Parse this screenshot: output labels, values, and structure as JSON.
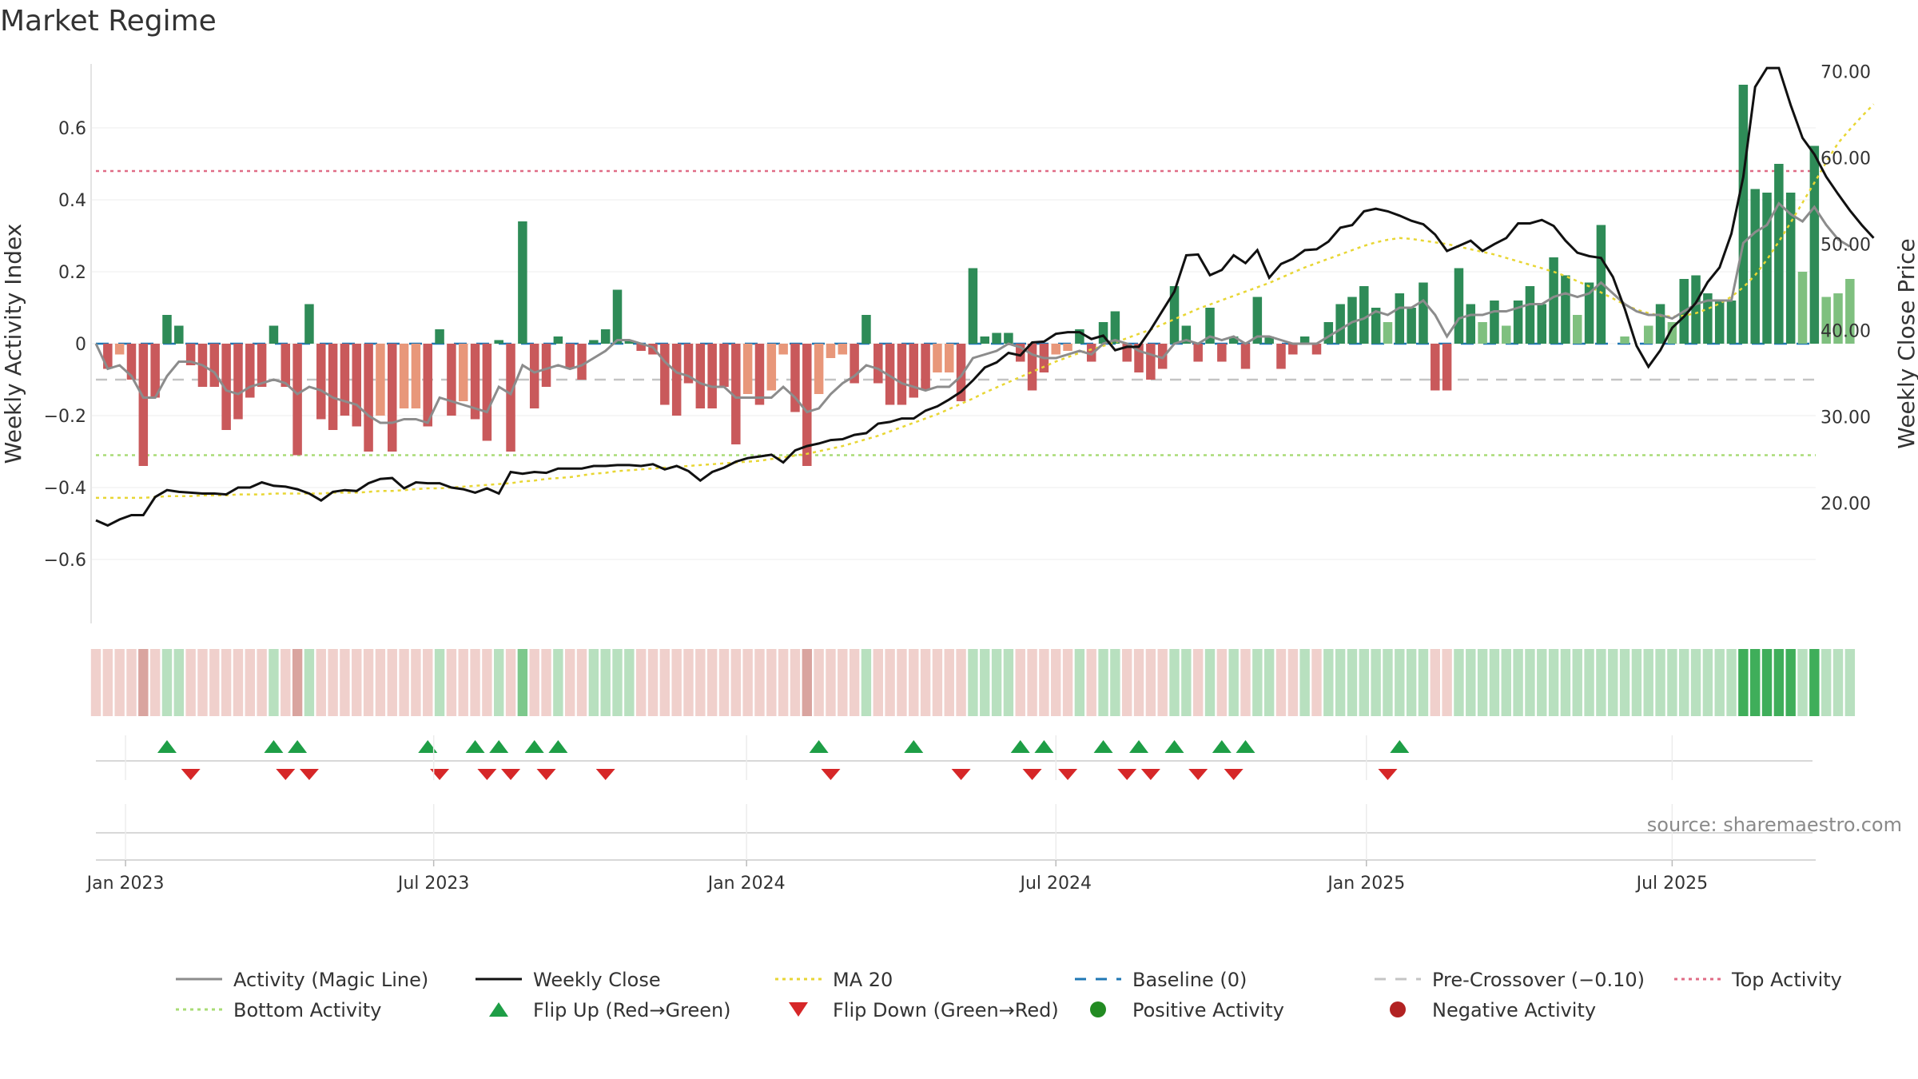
{
  "chart_data": {
    "type": "bar",
    "title": "Market Regime",
    "ylabel": "Weekly Activity Index",
    "y2label": "Weekly Close Price",
    "ylim": [
      -0.78,
      0.78
    ],
    "y2lim": [
      13.0,
      77.5
    ],
    "yticks": [
      "0.6",
      "0.4",
      "0.2",
      "0",
      "−0.2",
      "−0.4",
      "−0.6"
    ],
    "yticks_values": [
      0.6,
      0.4,
      0.2,
      0,
      -0.2,
      -0.4,
      -0.6
    ],
    "y2ticks": [
      "70.00",
      "60.00",
      "50.00",
      "40.00",
      "30.00",
      "20.00"
    ],
    "y2ticks_values": [
      70,
      60,
      50,
      40,
      30,
      20
    ],
    "xticks": [
      "Jan 2023",
      "Jul 2023",
      "Jan 2024",
      "Jul 2024",
      "Jan 2025",
      "Jul 2025"
    ],
    "xtick_weeks": [
      2.5,
      28.5,
      54.9,
      81,
      107.2,
      133
    ],
    "grid": true,
    "legend_position": "bottom",
    "reference_lines": {
      "baseline": 0,
      "pre_crossover": -0.1,
      "top_activity": 0.48,
      "bottom_activity": -0.31
    },
    "activity": [
      0.0,
      -0.07,
      -0.03,
      -0.1,
      -0.34,
      -0.15,
      0.08,
      0.05,
      -0.06,
      -0.12,
      -0.12,
      -0.24,
      -0.21,
      -0.15,
      -0.12,
      0.05,
      -0.12,
      -0.31,
      0.11,
      -0.21,
      -0.24,
      -0.2,
      -0.23,
      -0.3,
      -0.2,
      -0.3,
      -0.18,
      -0.18,
      -0.23,
      0.04,
      -0.2,
      -0.16,
      -0.21,
      -0.27,
      0.01,
      -0.3,
      0.34,
      -0.18,
      -0.12,
      0.02,
      -0.07,
      -0.1,
      0.01,
      0.04,
      0.15,
      0.01,
      -0.02,
      -0.03,
      -0.17,
      -0.2,
      -0.11,
      -0.18,
      -0.18,
      -0.12,
      -0.28,
      -0.14,
      -0.17,
      -0.13,
      -0.03,
      -0.19,
      -0.34,
      -0.14,
      -0.04,
      -0.03,
      -0.11,
      0.08,
      -0.11,
      -0.17,
      -0.17,
      -0.15,
      -0.13,
      -0.08,
      -0.08,
      -0.16,
      0.21,
      0.02,
      0.03,
      0.03,
      -0.05,
      -0.13,
      -0.08,
      -0.03,
      -0.02,
      0.04,
      -0.05,
      0.06,
      0.09,
      -0.05,
      -0.08,
      -0.1,
      -0.07,
      0.16,
      0.05,
      -0.05,
      0.1,
      -0.05,
      0.02,
      -0.07,
      0.13,
      0.02,
      -0.07,
      -0.03,
      0.02,
      -0.03,
      0.06,
      0.11,
      0.13,
      0.16,
      0.1,
      0.06,
      0.14,
      0.1,
      0.17,
      -0.13,
      -0.13,
      0.21,
      0.11,
      0.06,
      0.12,
      0.05,
      0.12,
      0.16,
      0.11,
      0.24,
      0.19,
      0.08,
      0.17,
      0.33,
      0.0,
      0.02,
      0.0,
      0.05,
      0.11,
      0.06,
      0.18,
      0.19,
      0.14,
      0.12,
      0.12,
      0.72,
      0.43,
      0.42,
      0.5,
      0.42,
      0.2,
      0.55,
      0.13,
      0.14,
      0.18
    ],
    "magic_line": [
      0.0,
      -0.07,
      -0.06,
      -0.09,
      -0.15,
      -0.15,
      -0.09,
      -0.05,
      -0.05,
      -0.06,
      -0.08,
      -0.13,
      -0.14,
      -0.12,
      -0.11,
      -0.1,
      -0.11,
      -0.14,
      -0.12,
      -0.13,
      -0.15,
      -0.16,
      -0.17,
      -0.2,
      -0.22,
      -0.22,
      -0.21,
      -0.21,
      -0.22,
      -0.15,
      -0.16,
      -0.17,
      -0.18,
      -0.19,
      -0.12,
      -0.14,
      -0.06,
      -0.08,
      -0.07,
      -0.06,
      -0.07,
      -0.06,
      -0.04,
      -0.02,
      0.01,
      0.01,
      0.0,
      -0.01,
      -0.05,
      -0.08,
      -0.09,
      -0.11,
      -0.12,
      -0.12,
      -0.15,
      -0.15,
      -0.15,
      -0.15,
      -0.12,
      -0.15,
      -0.19,
      -0.18,
      -0.14,
      -0.11,
      -0.09,
      -0.06,
      -0.07,
      -0.09,
      -0.11,
      -0.12,
      -0.13,
      -0.12,
      -0.12,
      -0.09,
      -0.04,
      -0.03,
      -0.02,
      0.0,
      -0.01,
      -0.03,
      -0.04,
      -0.04,
      -0.03,
      -0.02,
      -0.03,
      0.0,
      0.01,
      0.0,
      -0.02,
      -0.03,
      -0.04,
      0.0,
      0.01,
      0.0,
      0.02,
      0.01,
      0.02,
      0.0,
      0.02,
      0.02,
      0.01,
      0.0,
      0.0,
      0.0,
      0.02,
      0.04,
      0.06,
      0.07,
      0.09,
      0.08,
      0.1,
      0.1,
      0.12,
      0.08,
      0.02,
      0.07,
      0.08,
      0.08,
      0.09,
      0.09,
      0.1,
      0.11,
      0.11,
      0.13,
      0.14,
      0.13,
      0.14,
      0.17,
      0.14,
      0.11,
      0.09,
      0.08,
      0.08,
      0.07,
      0.09,
      0.11,
      0.12,
      0.12,
      0.12,
      0.28,
      0.31,
      0.33,
      0.39,
      0.36,
      0.34,
      0.38,
      0.33,
      0.29,
      0.27
    ],
    "weekly_close": [
      18.0,
      17.4,
      18.1,
      18.6,
      18.6,
      20.7,
      21.5,
      21.3,
      21.2,
      21.1,
      21.1,
      21.0,
      21.8,
      21.8,
      22.4,
      22.0,
      21.9,
      21.6,
      21.1,
      20.3,
      21.3,
      21.5,
      21.4,
      22.3,
      22.8,
      22.9,
      21.7,
      22.4,
      22.3,
      22.3,
      21.8,
      21.6,
      21.2,
      21.7,
      21.1,
      23.6,
      23.4,
      23.6,
      23.5,
      24.0,
      24.0,
      24.0,
      24.3,
      24.3,
      24.4,
      24.4,
      24.3,
      24.5,
      23.9,
      24.3,
      23.7,
      22.6,
      23.6,
      24.1,
      24.8,
      25.2,
      25.4,
      25.6,
      24.7,
      26.1,
      26.6,
      26.9,
      27.3,
      27.4,
      27.9,
      28.1,
      29.2,
      29.4,
      29.8,
      29.8,
      30.7,
      31.2,
      32.0,
      32.9,
      34.2,
      35.7,
      36.3,
      37.4,
      37.1,
      38.6,
      38.7,
      39.6,
      39.8,
      39.8,
      39.0,
      39.4,
      37.7,
      38.1,
      38.1,
      40.1,
      42.3,
      44.5,
      48.7,
      48.8,
      46.4,
      47.0,
      48.7,
      47.8,
      49.3,
      46.1,
      47.7,
      48.3,
      49.3,
      49.4,
      50.3,
      51.9,
      52.2,
      53.8,
      54.1,
      53.8,
      53.3,
      52.7,
      52.3,
      51.1,
      49.2,
      49.8,
      50.4,
      49.2,
      50.0,
      50.7,
      52.4,
      52.4,
      52.8,
      52.1,
      50.4,
      49.0,
      48.6,
      48.4,
      46.2,
      42.5,
      38.2,
      35.8,
      37.7,
      40.3,
      41.6,
      43.2,
      45.6,
      47.3,
      51.2,
      57.8,
      68.2,
      70.4,
      70.4,
      66.1,
      62.3,
      60.4,
      57.8,
      55.8,
      53.9,
      52.2,
      50.7
    ],
    "ma20": [
      20.6,
      20.6,
      20.6,
      20.6,
      20.6,
      20.7,
      20.8,
      20.8,
      20.8,
      20.9,
      20.9,
      20.9,
      21.0,
      21.0,
      21.0,
      21.1,
      21.1,
      21.1,
      21.1,
      21.1,
      21.2,
      21.2,
      21.2,
      21.3,
      21.4,
      21.4,
      21.5,
      21.6,
      21.7,
      21.7,
      21.8,
      21.9,
      22.0,
      22.1,
      22.2,
      22.3,
      22.5,
      22.6,
      22.8,
      22.9,
      23.0,
      23.2,
      23.4,
      23.5,
      23.7,
      23.8,
      23.9,
      24.0,
      24.1,
      24.2,
      24.3,
      24.4,
      24.5,
      24.6,
      24.7,
      24.8,
      24.9,
      25.1,
      25.3,
      25.5,
      25.7,
      26.0,
      26.3,
      26.6,
      27.0,
      27.4,
      27.8,
      28.3,
      28.8,
      29.3,
      29.8,
      30.3,
      30.9,
      31.5,
      32.1,
      32.8,
      33.4,
      34.0,
      34.6,
      35.2,
      35.8,
      36.4,
      36.9,
      37.4,
      37.8,
      38.2,
      38.6,
      39.1,
      39.6,
      40.1,
      40.7,
      41.3,
      41.9,
      42.5,
      43.0,
      43.5,
      44.0,
      44.5,
      45.0,
      45.5,
      46.1,
      46.7,
      47.3,
      47.8,
      48.3,
      48.8,
      49.3,
      49.8,
      50.2,
      50.5,
      50.7,
      50.6,
      50.4,
      50.2,
      50.0,
      49.7,
      49.4,
      49.1,
      48.8,
      48.4,
      48.0,
      47.6,
      47.2,
      46.8,
      46.3,
      45.7,
      45.1,
      44.4,
      43.7,
      43.0,
      42.4,
      42.0,
      41.7,
      41.6,
      41.7,
      42.0,
      42.5,
      43.1,
      43.9,
      45.0,
      46.4,
      48.2,
      50.3,
      52.5,
      54.8,
      57.1,
      59.5,
      61.7,
      63.3,
      64.8,
      66.2
    ],
    "regime_strip": [
      "rl",
      "rl",
      "rl",
      "rl",
      "rm",
      "rl",
      "gl",
      "gl",
      "rl",
      "rl",
      "rl",
      "rl",
      "rl",
      "rl",
      "rl",
      "gl",
      "rl",
      "rm",
      "gl",
      "rl",
      "rl",
      "rl",
      "rl",
      "rl",
      "rl",
      "rl",
      "rl",
      "rl",
      "rl",
      "gl",
      "rl",
      "rl",
      "rl",
      "rl",
      "gl",
      "rl",
      "gm",
      "rl",
      "rl",
      "gl",
      "rl",
      "rl",
      "gl",
      "gl",
      "gl",
      "gl",
      "rl",
      "rl",
      "rl",
      "rl",
      "rl",
      "rl",
      "rl",
      "rl",
      "rl",
      "rl",
      "rl",
      "rl",
      "rl",
      "rl",
      "rm",
      "rl",
      "rl",
      "rl",
      "rl",
      "gl",
      "rl",
      "rl",
      "rl",
      "rl",
      "rl",
      "rl",
      "rl",
      "rl",
      "gl",
      "gl",
      "gl",
      "gl",
      "rl",
      "rl",
      "rl",
      "rl",
      "rl",
      "gl",
      "rl",
      "gl",
      "gl",
      "rl",
      "rl",
      "rl",
      "rl",
      "gl",
      "gl",
      "rl",
      "gl",
      "rl",
      "gl",
      "rl",
      "gl",
      "gl",
      "rl",
      "rl",
      "gl",
      "rl",
      "gl",
      "gl",
      "gl",
      "gl",
      "gl",
      "gl",
      "gl",
      "gl",
      "gl",
      "rl",
      "rl",
      "gl",
      "gl",
      "gl",
      "gl",
      "gl",
      "gl",
      "gl",
      "gl",
      "gl",
      "gl",
      "gl",
      "gl",
      "gl",
      "gl",
      "gl",
      "gl",
      "gl",
      "gl",
      "gl",
      "gl",
      "gl",
      "gl",
      "gl",
      "gl",
      "gd",
      "gd",
      "gd",
      "gd",
      "gd",
      "gl",
      "gd",
      "gl",
      "gl",
      "gl"
    ],
    "flip_up_weeks": [
      6,
      15,
      17,
      28,
      32,
      34,
      37,
      39,
      61,
      69,
      78,
      80,
      85,
      88,
      91,
      95,
      97,
      110
    ],
    "flip_down_weeks": [
      8,
      16,
      18,
      29,
      33,
      35,
      38,
      43,
      62,
      73,
      79,
      82,
      87,
      89,
      93,
      96,
      109
    ],
    "legend": [
      {
        "label": "Activity (Magic Line)",
        "style": "solid",
        "color": "#8c8c8c"
      },
      {
        "label": "Weekly Close",
        "style": "solid",
        "color": "#111111"
      },
      {
        "label": "MA 20",
        "style": "dotted",
        "color": "#e8d634"
      },
      {
        "label": "Baseline (0)",
        "style": "dashed",
        "color": "#1f77b4"
      },
      {
        "label": "Pre-Crossover (−0.10)",
        "style": "dashed",
        "color": "#c4c4c4"
      },
      {
        "label": "Top Activity",
        "style": "dotted",
        "color": "#e06c86"
      },
      {
        "label": "Bottom Activity",
        "style": "dotted",
        "color": "#a9dc76"
      },
      {
        "label": "Flip Up (Red→Green)",
        "style": "triangle-up",
        "color": "#1e9e46"
      },
      {
        "label": "Flip Down (Green→Red)",
        "style": "triangle-down",
        "color": "#d62728"
      },
      {
        "label": "Positive Activity",
        "style": "circle",
        "color": "#228b22"
      },
      {
        "label": "Negative Activity",
        "style": "circle",
        "color": "#b22222"
      }
    ],
    "source": "source: sharemaestro.com"
  },
  "colors": {
    "bar_green_dark": "#2e8b57",
    "bar_green_light": "#7fc07f",
    "bar_red_dark": "#c9595b",
    "bar_salmon": "#e8977a",
    "strip_red_light": "#f0d0cc",
    "strip_red_mid": "#d9a49f",
    "strip_green_light": "#b8e0bf",
    "strip_green_mid": "#7dc88c",
    "strip_green_dark": "#3fae5a"
  }
}
